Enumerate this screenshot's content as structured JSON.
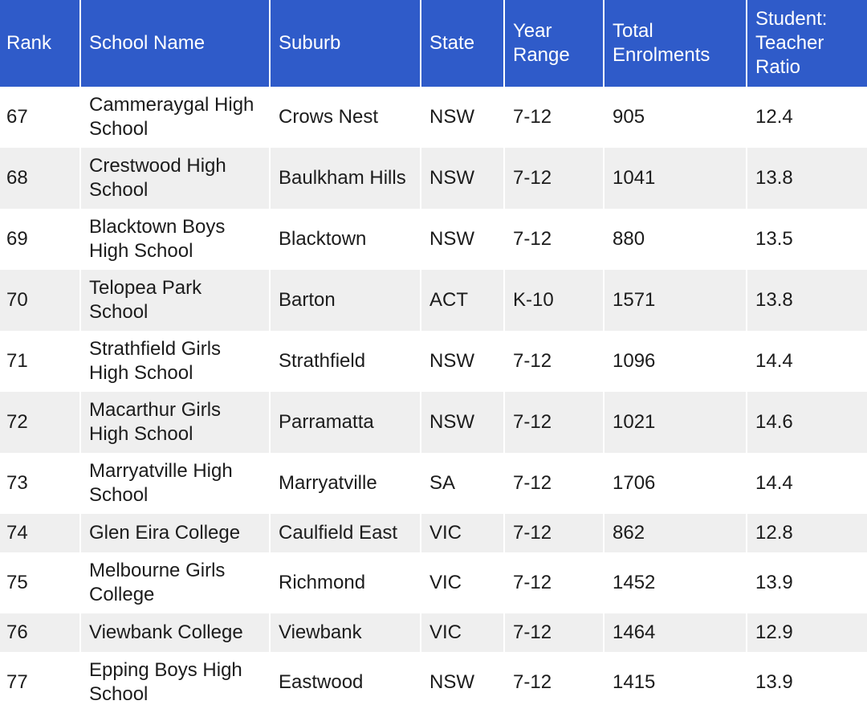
{
  "table": {
    "columns": [
      "Rank",
      "School Name",
      "Suburb",
      "State",
      "Year Range",
      "Total Enrolments",
      "Student: Teacher Ratio"
    ],
    "rows": [
      [
        "67",
        "Cammeraygal High School",
        "Crows Nest",
        "NSW",
        "7-12",
        "905",
        "12.4"
      ],
      [
        "68",
        "Crestwood High School",
        "Baulkham Hills",
        "NSW",
        "7-12",
        "1041",
        "13.8"
      ],
      [
        "69",
        "Blacktown Boys High School",
        "Blacktown",
        "NSW",
        "7-12",
        "880",
        "13.5"
      ],
      [
        "70",
        "Telopea Park School",
        "Barton",
        "ACT",
        "K-10",
        "1571",
        "13.8"
      ],
      [
        "71",
        "Strathfield Girls High School",
        "Strathfield",
        "NSW",
        "7-12",
        "1096",
        "14.4"
      ],
      [
        "72",
        "Macarthur Girls High School",
        "Parramatta",
        "NSW",
        "7-12",
        "1021",
        "14.6"
      ],
      [
        "73",
        "Marryatville High School",
        "Marryatville",
        "SA",
        "7-12",
        "1706",
        "14.4"
      ],
      [
        "74",
        "Glen Eira College",
        "Caulfield East",
        "VIC",
        "7-12",
        "862",
        "12.8"
      ],
      [
        "75",
        "Melbourne Girls College",
        "Richmond",
        "VIC",
        "7-12",
        "1452",
        "13.9"
      ],
      [
        "76",
        "Viewbank College",
        "Viewbank",
        "VIC",
        "7-12",
        "1464",
        "12.9"
      ],
      [
        "77",
        "Epping Boys High School",
        "Eastwood",
        "NSW",
        "7-12",
        "1415",
        "13.9"
      ]
    ]
  }
}
